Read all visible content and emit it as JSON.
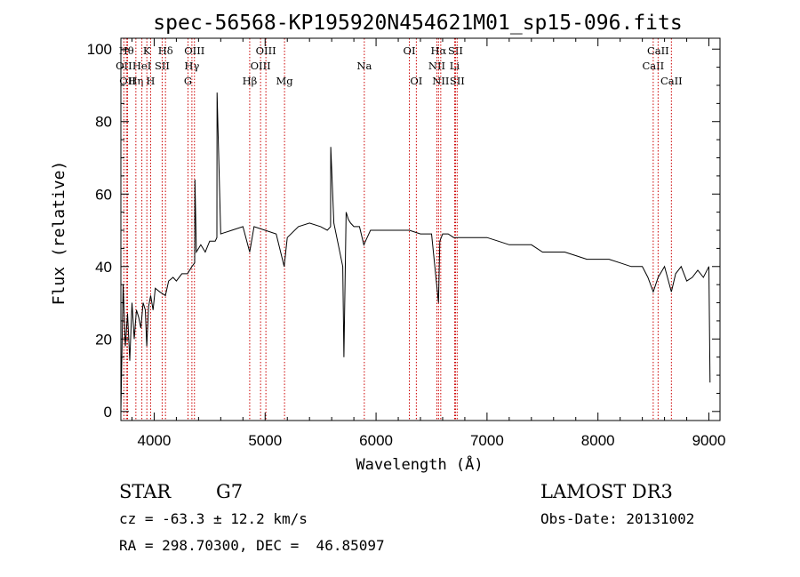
{
  "chart_data": {
    "type": "line",
    "title": "spec-56568-KP195920N454621M01_sp15-096.fits",
    "xlabel": "Wavelength (Å)",
    "ylabel": "Flux (relative)",
    "xlim": [
      3700,
      9100
    ],
    "ylim": [
      -2.5,
      103
    ],
    "x_ticks": [
      4000,
      5000,
      6000,
      7000,
      8000,
      9000
    ],
    "y_ticks": [
      0,
      20,
      40,
      60,
      80,
      100
    ],
    "grid": false,
    "series": [
      {
        "name": "flux",
        "x": [
          3700,
          3720,
          3740,
          3760,
          3780,
          3800,
          3820,
          3840,
          3860,
          3880,
          3900,
          3920,
          3933,
          3950,
          3968,
          3990,
          4010,
          4050,
          4101,
          4130,
          4170,
          4200,
          4250,
          4300,
          4340,
          4365,
          4367,
          4380,
          4420,
          4460,
          4500,
          4550,
          4565,
          4567,
          4600,
          4700,
          4800,
          4861,
          4900,
          5000,
          5100,
          5172,
          5200,
          5300,
          5400,
          5500,
          5560,
          5590,
          5592,
          5620,
          5660,
          5700,
          5710,
          5730,
          5750,
          5770,
          5800,
          5850,
          5890,
          5950,
          6000,
          6100,
          6200,
          6300,
          6400,
          6500,
          6563,
          6575,
          6600,
          6650,
          6700,
          6800,
          6900,
          7000,
          7100,
          7200,
          7300,
          7400,
          7500,
          7600,
          7700,
          7800,
          7900,
          8000,
          8100,
          8200,
          8300,
          8400,
          8450,
          8498,
          8542,
          8600,
          8662,
          8700,
          8750,
          8800,
          8850,
          8900,
          8950,
          9000,
          9010
        ],
        "values": [
          0,
          35,
          18,
          27,
          14,
          30,
          20,
          28,
          26,
          23,
          30,
          28,
          18,
          29,
          32,
          28,
          34,
          33,
          32,
          36,
          37,
          36,
          38,
          38,
          40,
          41,
          64,
          44,
          46,
          44,
          47,
          47,
          48,
          88,
          49,
          50,
          51,
          44,
          51,
          50,
          49,
          40,
          48,
          51,
          52,
          51,
          50,
          51,
          73,
          52,
          46,
          40,
          15,
          55,
          53,
          52,
          51,
          51,
          46,
          50,
          50,
          50,
          50,
          50,
          49,
          49,
          30,
          47,
          49,
          49,
          48,
          48,
          48,
          48,
          47,
          46,
          46,
          46,
          44,
          44,
          44,
          43,
          42,
          42,
          42,
          41,
          40,
          40,
          37,
          33,
          37,
          40,
          33,
          38,
          40,
          36,
          37,
          39,
          37,
          40,
          8
        ]
      }
    ],
    "lines": [
      {
        "label": "OII",
        "wave": 3727,
        "row": 2
      },
      {
        "label": "Hθ",
        "wave": 3750,
        "row": 1
      },
      {
        "label": "OII",
        "wave": 3760,
        "row": 3
      },
      {
        "label": "Hη",
        "wave": 3835,
        "row": 3
      },
      {
        "label": "HeI",
        "wave": 3889,
        "row": 2
      },
      {
        "label": "K",
        "wave": 3934,
        "row": 1
      },
      {
        "label": "H",
        "wave": 3968,
        "row": 3
      },
      {
        "label": "SII",
        "wave": 4072,
        "row": 2
      },
      {
        "label": "Hδ",
        "wave": 4102,
        "row": 1
      },
      {
        "label": "G",
        "wave": 4305,
        "row": 3
      },
      {
        "label": "Hγ",
        "wave": 4340,
        "row": 2
      },
      {
        "label": "OIII",
        "wave": 4363,
        "row": 1
      },
      {
        "label": "Hβ",
        "wave": 4861,
        "row": 3
      },
      {
        "label": "OIII",
        "wave": 4959,
        "row": 2
      },
      {
        "label": "OIII",
        "wave": 5007,
        "row": 1
      },
      {
        "label": "Mg",
        "wave": 5175,
        "row": 3
      },
      {
        "label": "Na",
        "wave": 5894,
        "row": 2
      },
      {
        "label": "OI",
        "wave": 6300,
        "row": 1
      },
      {
        "label": "OI",
        "wave": 6363,
        "row": 3
      },
      {
        "label": "NII",
        "wave": 6548,
        "row": 2
      },
      {
        "label": "Hα",
        "wave": 6563,
        "row": 1
      },
      {
        "label": "NII",
        "wave": 6583,
        "row": 3
      },
      {
        "label": "Li",
        "wave": 6708,
        "row": 2
      },
      {
        "label": "SII",
        "wave": 6716,
        "row": 1
      },
      {
        "label": "SII",
        "wave": 6731,
        "row": 3
      },
      {
        "label": "CaII",
        "wave": 8498,
        "row": 2
      },
      {
        "label": "CaII",
        "wave": 8542,
        "row": 1
      },
      {
        "label": "CaII",
        "wave": 8662,
        "row": 3
      }
    ]
  },
  "info": {
    "class": "STAR",
    "subclass": "G7",
    "survey": "LAMOST DR3",
    "cz": "cz = -63.3 ± 12.2 km/s",
    "obs_date": "Obs-Date: 20131002",
    "radec": "RA = 298.70300, DEC =  46.85097"
  },
  "colors": {
    "spectrum": "#000000",
    "line_markers": "#cc0000",
    "axes": "#000000",
    "background": "#ffffff"
  }
}
